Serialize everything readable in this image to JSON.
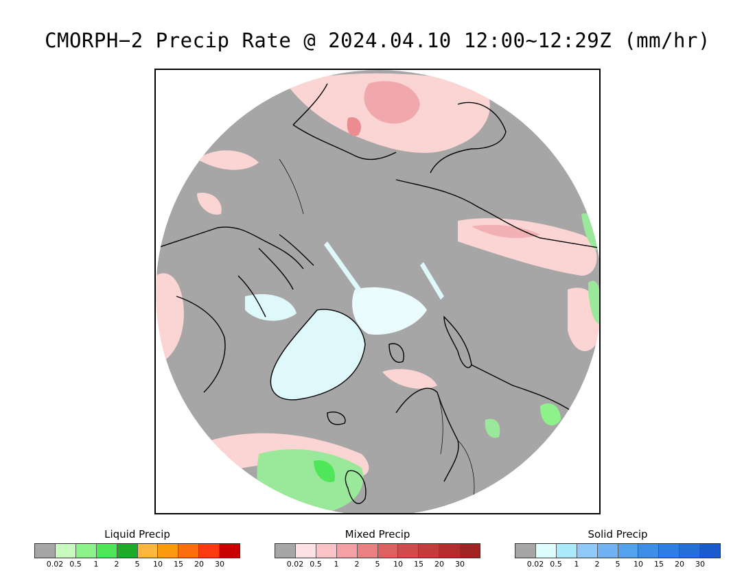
{
  "title": "CMORPH−2 Precip Rate @ 2024.04.10 12:00~12:29Z (mm/hr)",
  "map": {
    "projection": "north polar stereographic",
    "no_precip_color": "#a6a6a6",
    "ice_color": "#dff8fb",
    "mixed_light_color": "#fbd4d4",
    "liquid_light_color": "#9ae89a",
    "coastline_color": "#000000"
  },
  "legends": [
    {
      "id": "liquid",
      "title": "Liquid Precip",
      "colors": [
        "#a6a6a6",
        "#c9fbc0",
        "#8ef28a",
        "#4fe65a",
        "#1eaa2b",
        "#fbb73f",
        "#fb9a10",
        "#fb6e10",
        "#fb3a10",
        "#c80000"
      ],
      "ticks": [
        "0.02",
        "0.5",
        "1",
        "2",
        "5",
        "10",
        "15",
        "20",
        "30"
      ]
    },
    {
      "id": "mixed",
      "title": "Mixed Precip",
      "colors": [
        "#a6a6a6",
        "#fde1e3",
        "#fbc3c7",
        "#f4a0a4",
        "#ea8080",
        "#dc6262",
        "#d04c4c",
        "#c43c3c",
        "#b42c2c",
        "#a02424"
      ],
      "ticks": [
        "0.02",
        "0.5",
        "1",
        "2",
        "5",
        "10",
        "15",
        "20",
        "30"
      ]
    },
    {
      "id": "solid",
      "title": "Solid Precip",
      "colors": [
        "#a6a6a6",
        "#defefe",
        "#aaeafa",
        "#90cafa",
        "#70b2f2",
        "#54a2ee",
        "#3e8ee8",
        "#2e7ee4",
        "#266ed8",
        "#1a5acc"
      ],
      "ticks": [
        "0.02",
        "0.5",
        "1",
        "2",
        "5",
        "10",
        "15",
        "20",
        "30"
      ]
    }
  ]
}
